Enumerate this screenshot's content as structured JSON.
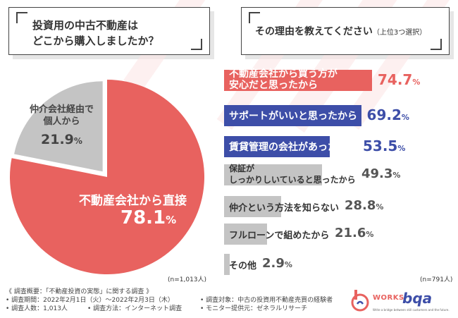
{
  "left_question": {
    "line1": "投資用の中古不動産は",
    "line2": "どこから購入しましたか？"
  },
  "right_question": {
    "main": "その理由を教えてください",
    "sub": "（上位3つ選択）"
  },
  "chart_data": [
    {
      "type": "pie",
      "slices": [
        {
          "label": "不動産会社から直接",
          "value": 78.1,
          "color": "#e8625f"
        },
        {
          "label": "仲介会社経由で個人から",
          "value": 21.9,
          "color": "#c4c4c4"
        }
      ],
      "note": "(n=1,013人)"
    },
    {
      "type": "bar",
      "categories": [
        "不動産会社から買う方が安心だと思ったから",
        "サポートがいいと思ったから",
        "賃貸管理の会社があったから",
        "保証がしっかりしいていると思ったから",
        "仲介という方法を知らない",
        "フルローンで組めたから",
        "その他"
      ],
      "values": [
        74.7,
        69.2,
        53.5,
        49.3,
        28.8,
        21.6,
        2.9
      ],
      "unit": "%",
      "colors": [
        "#e8625f",
        "#3d4ea8",
        "#3d4ea8",
        "#c4c4c4",
        "#c4c4c4",
        "#c4c4c4",
        "#c4c4c4"
      ],
      "note": "(n=791人)"
    }
  ],
  "pie_labels": {
    "main_label": "不動産会社から直接",
    "main_value": "78.1",
    "minor_label_1": "仲介会社経由で",
    "minor_label_2": "個人から",
    "minor_value": "21.9",
    "unit": "%"
  },
  "bars": [
    {
      "line1": "不動産会社から買う方が",
      "line2": "安心だと思ったから",
      "value": "74.7"
    },
    {
      "line1": "サポートがいいと思ったから",
      "line2": "",
      "value": "69.2"
    },
    {
      "line1": "賃貸管理の会社があったから",
      "line2": "",
      "value": "53.5"
    },
    {
      "line1": "保証が",
      "line2": "しっかりしいていると思ったから",
      "value": "49.3"
    },
    {
      "line1": "仲介という方法を知らない",
      "line2": "",
      "value": "28.8"
    },
    {
      "line1": "フルローンで組めたから",
      "line2": "",
      "value": "21.6"
    },
    {
      "line1": "その他",
      "line2": "",
      "value": "2.9"
    }
  ],
  "footer": {
    "title": "《 調査概要：「不動産投資の実態」に関する調査 》",
    "period": "• 調査期間：2022年2月1日（火）〜2022年2月3日（木）",
    "count": "• 調査人数：1,013人",
    "method": "• 調査方法：インターネット調査",
    "target": "• 調査対象：中古の投資用不動産売買の経験者",
    "provider": "• モニター提供元：ゼネラルリサーチ"
  },
  "logo": {
    "brand": "WORKS",
    "brand2": "bqa",
    "tagline": "Write a bridge between still customers and the future."
  }
}
